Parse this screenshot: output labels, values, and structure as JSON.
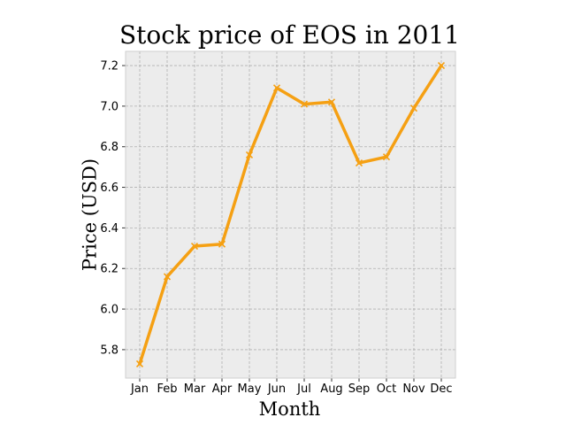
{
  "chart_data": {
    "type": "line",
    "title": "Stock price of EOS in 2011",
    "xlabel": "Month",
    "ylabel": "Price (USD)",
    "categories": [
      "Jan",
      "Feb",
      "Mar",
      "Apr",
      "May",
      "Jun",
      "Jul",
      "Aug",
      "Sep",
      "Oct",
      "Nov",
      "Dec"
    ],
    "series": [
      {
        "values": [
          5.73,
          6.16,
          6.31,
          6.32,
          6.76,
          7.09,
          7.01,
          7.02,
          6.72,
          6.75,
          6.99,
          7.2
        ]
      }
    ],
    "yticks": [
      5.8,
      6.0,
      6.2,
      6.4,
      6.6,
      6.8,
      7.0,
      7.2
    ],
    "ylim": [
      5.66,
      7.27
    ],
    "grid": true,
    "line_color": "#f5a013",
    "background_color": "#ececec",
    "marker": "x"
  }
}
